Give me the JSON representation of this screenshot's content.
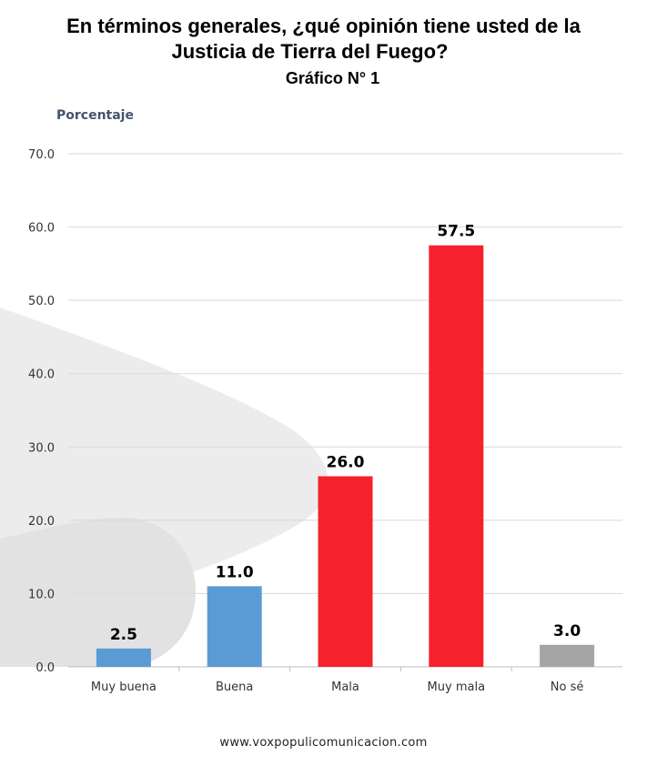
{
  "header": {
    "title_line_1": "En términos generales, ¿qué opinión tiene usted de la",
    "title_line_2": "Justicia de Tierra del Fuego?",
    "subtitle": "Gráfico N° 1"
  },
  "footer": {
    "url": "www.voxpopulicomunicacion.com"
  },
  "chart_data": {
    "type": "bar",
    "ylabel": "Porcentaje",
    "xlabel": "",
    "ylim": [
      0,
      70
    ],
    "yticks": [
      "0.0",
      "10.0",
      "20.0",
      "30.0",
      "40.0",
      "50.0",
      "60.0",
      "70.0"
    ],
    "grid": true,
    "categories": [
      "Muy buena",
      "Buena",
      "Mala",
      "Muy mala",
      "No sé"
    ],
    "values": [
      2.5,
      11.0,
      26.0,
      57.5,
      3.0
    ],
    "data_labels": [
      "2.5",
      "11.0",
      "26.0",
      "57.5",
      "3.0"
    ],
    "colors": [
      "#5b9bd5",
      "#5b9bd5",
      "#f5222d",
      "#f5222d",
      "#a5a5a5"
    ]
  }
}
